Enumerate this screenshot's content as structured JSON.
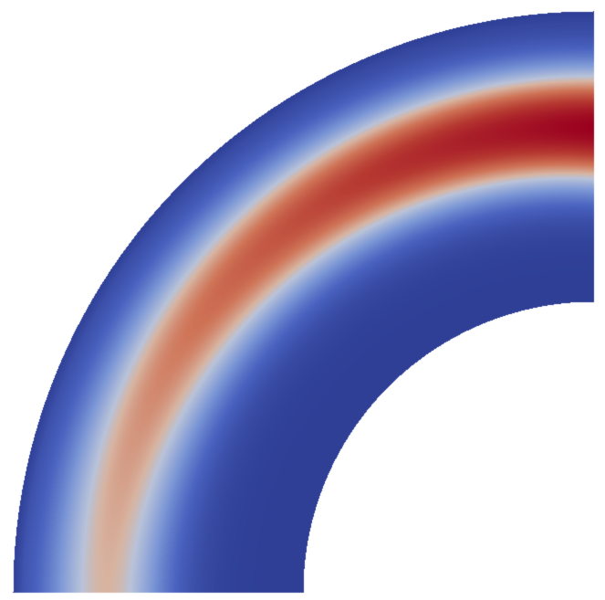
{
  "render": {
    "background": "#ffffff",
    "colormap_name": "cool-to-warm",
    "colormap": [
      {
        "t": 0.0,
        "color": "#2f3f96"
      },
      {
        "t": 0.15,
        "color": "#4a63c0"
      },
      {
        "t": 0.3,
        "color": "#7c97d6"
      },
      {
        "t": 0.45,
        "color": "#b9c3d9"
      },
      {
        "t": 0.52,
        "color": "#d7b4a1"
      },
      {
        "t": 0.65,
        "color": "#cf7457"
      },
      {
        "t": 0.8,
        "color": "#b73b32"
      },
      {
        "t": 1.0,
        "color": "#9a001f"
      }
    ]
  }
}
